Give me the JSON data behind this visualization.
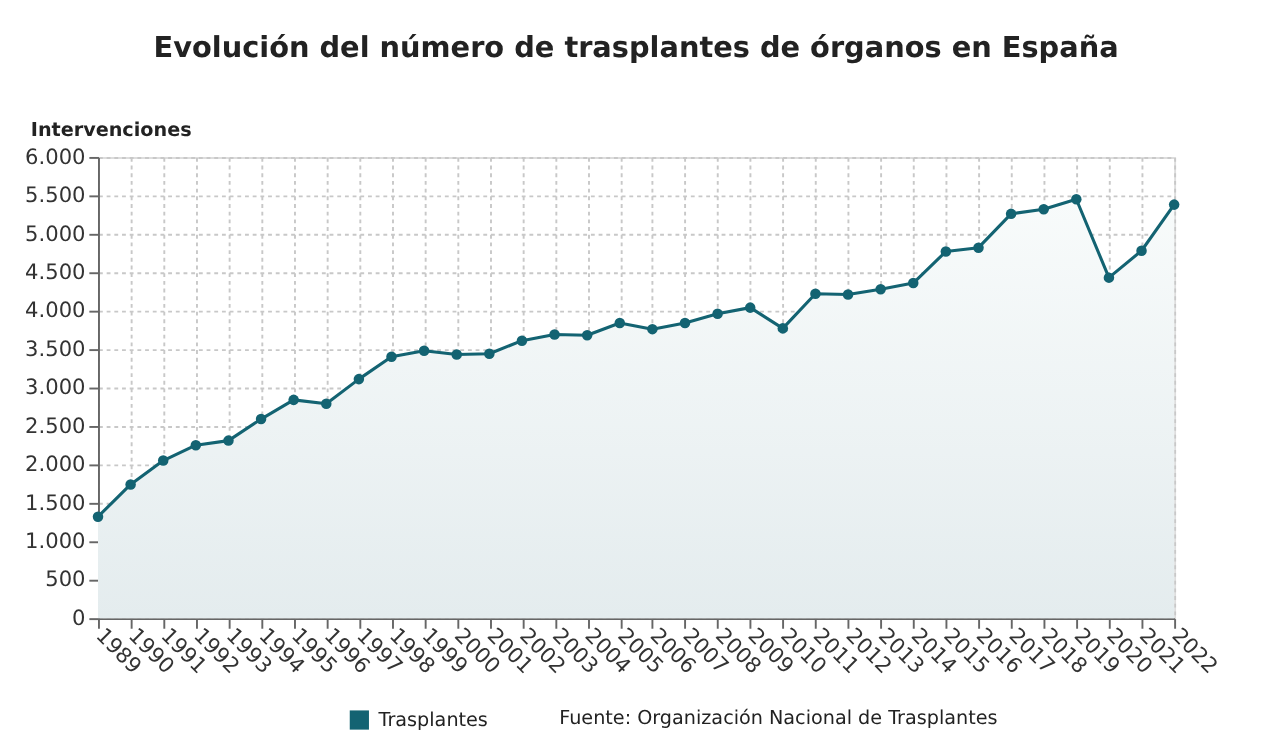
{
  "chart_data": {
    "type": "area",
    "title": "Evolución del número de trasplantes de órganos en España",
    "ylabel": "Intervenciones",
    "categories": [
      "1989",
      "1990",
      "1991",
      "1992",
      "1993",
      "1994",
      "1995",
      "1996",
      "1997",
      "1998",
      "1999",
      "2000",
      "2001",
      "2002",
      "2003",
      "2004",
      "2005",
      "2006",
      "2007",
      "2008",
      "2009",
      "2010",
      "2011",
      "2012",
      "2013",
      "2014",
      "2015",
      "2016",
      "2017",
      "2018",
      "2019",
      "2020",
      "2021",
      "2022"
    ],
    "series": [
      {
        "name": "Trasplantes",
        "color": "#136372",
        "values": [
          1320,
          1740,
          2050,
          2250,
          2310,
          2590,
          2840,
          2790,
          3110,
          3400,
          3480,
          3430,
          3440,
          3610,
          3690,
          3680,
          3840,
          3760,
          3840,
          3960,
          4040,
          3770,
          4220,
          4210,
          4280,
          4360,
          4770,
          4820,
          5260,
          5320,
          5450,
          4430,
          4780,
          5380
        ]
      }
    ],
    "ylim": [
      0,
      6000
    ],
    "yticks": [
      0,
      500,
      {
        "value": 1000,
        "label": "1.000"
      },
      {
        "value": 1500,
        "label": "1.500"
      },
      {
        "value": 2000,
        "label": "2.000"
      },
      {
        "value": 2500,
        "label": "2.500"
      },
      {
        "value": 3000,
        "label": "3.000"
      },
      {
        "value": 3500,
        "label": "3.500"
      },
      {
        "value": 4000,
        "label": "4.000"
      },
      {
        "value": 4500,
        "label": "4.500"
      },
      {
        "value": 5000,
        "label": "5.000"
      },
      {
        "value": 5500,
        "label": "5.500"
      },
      {
        "value": 6000,
        "label": "6.000"
      }
    ],
    "grid": true,
    "marker": "circle",
    "line_style": "solid",
    "legend": "bottom",
    "annotations": [
      "Fuente: Organización Nacional de Trasplantes"
    ]
  }
}
